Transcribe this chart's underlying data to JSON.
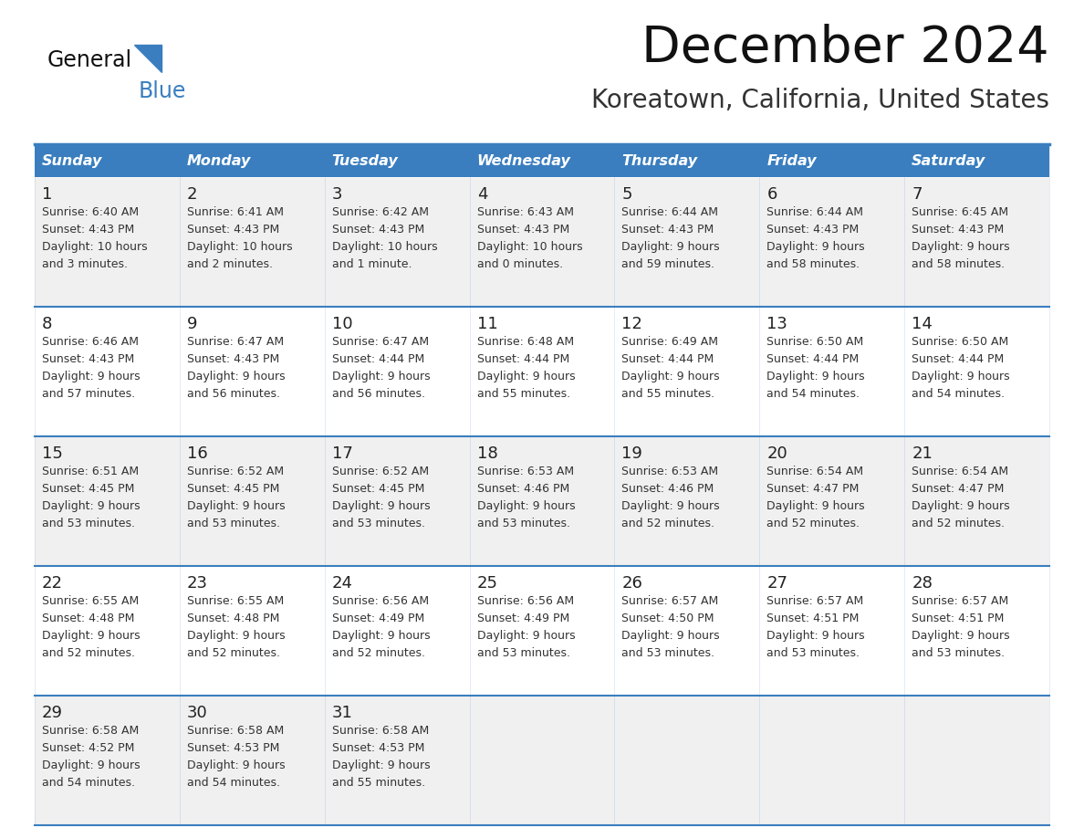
{
  "title": "December 2024",
  "subtitle": "Koreatown, California, United States",
  "days_of_week": [
    "Sunday",
    "Monday",
    "Tuesday",
    "Wednesday",
    "Thursday",
    "Friday",
    "Saturday"
  ],
  "header_bg": "#3a7ebf",
  "header_text_color": "#ffffff",
  "row_bg_odd": "#f0f0f0",
  "row_bg_even": "#ffffff",
  "border_color": "#3a7ebf",
  "day_num_color": "#222222",
  "cell_text_color": "#333333",
  "title_color": "#111111",
  "subtitle_color": "#333333",
  "calendar_data": [
    {
      "day": 1,
      "col": 0,
      "row": 0,
      "sunrise": "6:40 AM",
      "sunset": "4:43 PM",
      "daylight_hours": 10,
      "daylight_min_label": "and 3 minutes."
    },
    {
      "day": 2,
      "col": 1,
      "row": 0,
      "sunrise": "6:41 AM",
      "sunset": "4:43 PM",
      "daylight_hours": 10,
      "daylight_min_label": "and 2 minutes."
    },
    {
      "day": 3,
      "col": 2,
      "row": 0,
      "sunrise": "6:42 AM",
      "sunset": "4:43 PM",
      "daylight_hours": 10,
      "daylight_min_label": "and 1 minute."
    },
    {
      "day": 4,
      "col": 3,
      "row": 0,
      "sunrise": "6:43 AM",
      "sunset": "4:43 PM",
      "daylight_hours": 10,
      "daylight_min_label": "and 0 minutes."
    },
    {
      "day": 5,
      "col": 4,
      "row": 0,
      "sunrise": "6:44 AM",
      "sunset": "4:43 PM",
      "daylight_hours": 9,
      "daylight_min_label": "and 59 minutes."
    },
    {
      "day": 6,
      "col": 5,
      "row": 0,
      "sunrise": "6:44 AM",
      "sunset": "4:43 PM",
      "daylight_hours": 9,
      "daylight_min_label": "and 58 minutes."
    },
    {
      "day": 7,
      "col": 6,
      "row": 0,
      "sunrise": "6:45 AM",
      "sunset": "4:43 PM",
      "daylight_hours": 9,
      "daylight_min_label": "and 58 minutes."
    },
    {
      "day": 8,
      "col": 0,
      "row": 1,
      "sunrise": "6:46 AM",
      "sunset": "4:43 PM",
      "daylight_hours": 9,
      "daylight_min_label": "and 57 minutes."
    },
    {
      "day": 9,
      "col": 1,
      "row": 1,
      "sunrise": "6:47 AM",
      "sunset": "4:43 PM",
      "daylight_hours": 9,
      "daylight_min_label": "and 56 minutes."
    },
    {
      "day": 10,
      "col": 2,
      "row": 1,
      "sunrise": "6:47 AM",
      "sunset": "4:44 PM",
      "daylight_hours": 9,
      "daylight_min_label": "and 56 minutes."
    },
    {
      "day": 11,
      "col": 3,
      "row": 1,
      "sunrise": "6:48 AM",
      "sunset": "4:44 PM",
      "daylight_hours": 9,
      "daylight_min_label": "and 55 minutes."
    },
    {
      "day": 12,
      "col": 4,
      "row": 1,
      "sunrise": "6:49 AM",
      "sunset": "4:44 PM",
      "daylight_hours": 9,
      "daylight_min_label": "and 55 minutes."
    },
    {
      "day": 13,
      "col": 5,
      "row": 1,
      "sunrise": "6:50 AM",
      "sunset": "4:44 PM",
      "daylight_hours": 9,
      "daylight_min_label": "and 54 minutes."
    },
    {
      "day": 14,
      "col": 6,
      "row": 1,
      "sunrise": "6:50 AM",
      "sunset": "4:44 PM",
      "daylight_hours": 9,
      "daylight_min_label": "and 54 minutes."
    },
    {
      "day": 15,
      "col": 0,
      "row": 2,
      "sunrise": "6:51 AM",
      "sunset": "4:45 PM",
      "daylight_hours": 9,
      "daylight_min_label": "and 53 minutes."
    },
    {
      "day": 16,
      "col": 1,
      "row": 2,
      "sunrise": "6:52 AM",
      "sunset": "4:45 PM",
      "daylight_hours": 9,
      "daylight_min_label": "and 53 minutes."
    },
    {
      "day": 17,
      "col": 2,
      "row": 2,
      "sunrise": "6:52 AM",
      "sunset": "4:45 PM",
      "daylight_hours": 9,
      "daylight_min_label": "and 53 minutes."
    },
    {
      "day": 18,
      "col": 3,
      "row": 2,
      "sunrise": "6:53 AM",
      "sunset": "4:46 PM",
      "daylight_hours": 9,
      "daylight_min_label": "and 53 minutes."
    },
    {
      "day": 19,
      "col": 4,
      "row": 2,
      "sunrise": "6:53 AM",
      "sunset": "4:46 PM",
      "daylight_hours": 9,
      "daylight_min_label": "and 52 minutes."
    },
    {
      "day": 20,
      "col": 5,
      "row": 2,
      "sunrise": "6:54 AM",
      "sunset": "4:47 PM",
      "daylight_hours": 9,
      "daylight_min_label": "and 52 minutes."
    },
    {
      "day": 21,
      "col": 6,
      "row": 2,
      "sunrise": "6:54 AM",
      "sunset": "4:47 PM",
      "daylight_hours": 9,
      "daylight_min_label": "and 52 minutes."
    },
    {
      "day": 22,
      "col": 0,
      "row": 3,
      "sunrise": "6:55 AM",
      "sunset": "4:48 PM",
      "daylight_hours": 9,
      "daylight_min_label": "and 52 minutes."
    },
    {
      "day": 23,
      "col": 1,
      "row": 3,
      "sunrise": "6:55 AM",
      "sunset": "4:48 PM",
      "daylight_hours": 9,
      "daylight_min_label": "and 52 minutes."
    },
    {
      "day": 24,
      "col": 2,
      "row": 3,
      "sunrise": "6:56 AM",
      "sunset": "4:49 PM",
      "daylight_hours": 9,
      "daylight_min_label": "and 52 minutes."
    },
    {
      "day": 25,
      "col": 3,
      "row": 3,
      "sunrise": "6:56 AM",
      "sunset": "4:49 PM",
      "daylight_hours": 9,
      "daylight_min_label": "and 53 minutes."
    },
    {
      "day": 26,
      "col": 4,
      "row": 3,
      "sunrise": "6:57 AM",
      "sunset": "4:50 PM",
      "daylight_hours": 9,
      "daylight_min_label": "and 53 minutes."
    },
    {
      "day": 27,
      "col": 5,
      "row": 3,
      "sunrise": "6:57 AM",
      "sunset": "4:51 PM",
      "daylight_hours": 9,
      "daylight_min_label": "and 53 minutes."
    },
    {
      "day": 28,
      "col": 6,
      "row": 3,
      "sunrise": "6:57 AM",
      "sunset": "4:51 PM",
      "daylight_hours": 9,
      "daylight_min_label": "and 53 minutes."
    },
    {
      "day": 29,
      "col": 0,
      "row": 4,
      "sunrise": "6:58 AM",
      "sunset": "4:52 PM",
      "daylight_hours": 9,
      "daylight_min_label": "and 54 minutes."
    },
    {
      "day": 30,
      "col": 1,
      "row": 4,
      "sunrise": "6:58 AM",
      "sunset": "4:53 PM",
      "daylight_hours": 9,
      "daylight_min_label": "and 54 minutes."
    },
    {
      "day": 31,
      "col": 2,
      "row": 4,
      "sunrise": "6:58 AM",
      "sunset": "4:53 PM",
      "daylight_hours": 9,
      "daylight_min_label": "and 55 minutes."
    }
  ],
  "fig_width": 11.88,
  "fig_height": 9.18,
  "dpi": 100
}
